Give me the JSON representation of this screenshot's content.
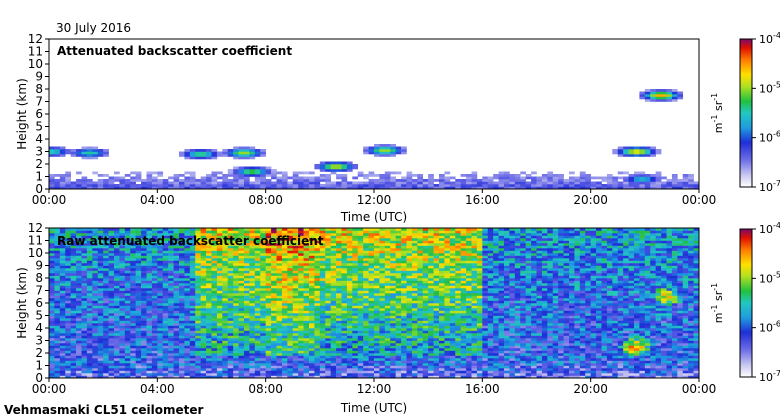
{
  "date_label": "30 July 2016",
  "instrument_label": "Vehmasmaki CL51 ceilometer",
  "chart_data": [
    {
      "type": "heatmap",
      "title": "Attenuated backscatter coefficient",
      "xlabel": "Time (UTC)",
      "ylabel": "Height (km)",
      "xlim": [
        0,
        24
      ],
      "ylim": [
        0,
        12
      ],
      "x_ticks": [
        "00:00",
        "04:00",
        "08:00",
        "12:00",
        "16:00",
        "20:00",
        "00:00"
      ],
      "y_ticks": [
        "0",
        "1",
        "2",
        "3",
        "4",
        "5",
        "6",
        "7",
        "8",
        "9",
        "10",
        "11",
        "12"
      ],
      "colorbar": {
        "scale": "log",
        "range": [
          1e-07,
          0.0001
        ],
        "tick_labels": [
          "10^-4",
          "10^-5",
          "10^-6",
          "10^-7"
        ],
        "unit": "m^-1 sr^-1"
      },
      "features": [
        {
          "name": "boundary layer aerosol",
          "t_start": 0,
          "t_end": 24,
          "top_km": 1.5,
          "level": 0.25
        },
        {
          "name": "cloud",
          "t": 0.1,
          "height_km": 3.0,
          "level": 0.55
        },
        {
          "name": "cloud",
          "t": 1.5,
          "height_km": 2.9,
          "level": 0.55
        },
        {
          "name": "cloud",
          "t": 5.6,
          "height_km": 2.8,
          "level": 0.6
        },
        {
          "name": "cloud",
          "t": 7.2,
          "height_km": 2.9,
          "level": 0.7
        },
        {
          "name": "cloud",
          "t": 7.5,
          "height_km": 1.4,
          "level": 0.65
        },
        {
          "name": "cloud",
          "t": 10.6,
          "height_km": 1.8,
          "level": 0.75
        },
        {
          "name": "cloud",
          "t": 12.4,
          "height_km": 3.1,
          "level": 0.7
        },
        {
          "name": "cloud",
          "t": 21.7,
          "height_km": 3.0,
          "level": 0.8
        },
        {
          "name": "cloud",
          "t": 22.6,
          "height_km": 7.5,
          "level": 0.85
        },
        {
          "name": "precipitation",
          "t": 21.9,
          "height_km": 0.8,
          "level": 0.5
        }
      ]
    },
    {
      "type": "heatmap",
      "title": "Raw attenuated backscatter coefficient",
      "xlabel": "Time (UTC)",
      "ylabel": "Height (km)",
      "xlim": [
        0,
        24
      ],
      "ylim": [
        0,
        12
      ],
      "x_ticks": [
        "00:00",
        "04:00",
        "08:00",
        "12:00",
        "16:00",
        "20:00",
        "00:00"
      ],
      "y_ticks": [
        "0",
        "1",
        "2",
        "3",
        "4",
        "5",
        "6",
        "7",
        "8",
        "9",
        "10",
        "11",
        "12"
      ],
      "colorbar": {
        "scale": "log",
        "range": [
          1e-07,
          0.0001
        ],
        "tick_labels": [
          "10^-4",
          "10^-5",
          "10^-6",
          "10^-7"
        ],
        "unit": "m^-1 sr^-1"
      },
      "features": [
        {
          "name": "noise background",
          "t_start": 0,
          "t_end": 24,
          "level": 0.45
        },
        {
          "name": "high noise period",
          "t_start": 5.5,
          "t_end": 16,
          "level": 0.75
        },
        {
          "name": "high noise period",
          "t_start": 8,
          "t_end": 10,
          "level": 0.85
        },
        {
          "name": "cloud",
          "t": 22.8,
          "height_km": 6.5,
          "level": 0.7
        },
        {
          "name": "cloud",
          "t": 21.7,
          "height_km": 2.5,
          "level": 0.8
        }
      ]
    }
  ]
}
